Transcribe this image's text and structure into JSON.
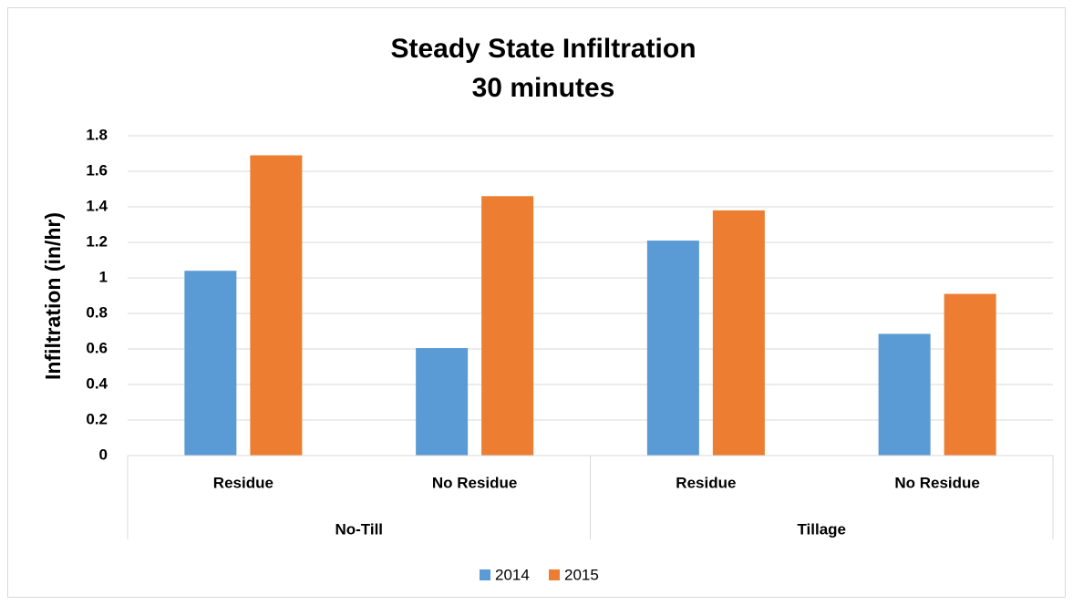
{
  "chart_data": {
    "type": "bar",
    "title": "Steady State Infiltration",
    "subtitle": "30 minutes",
    "y_label": "Infiltration (in/hr)",
    "groups": [
      {
        "name": "No-Till",
        "categories": [
          "Residue",
          "No Residue"
        ]
      },
      {
        "name": "Tillage",
        "categories": [
          "Residue",
          "No Residue"
        ]
      }
    ],
    "series": [
      {
        "name": "2014",
        "color": "#5b9bd5",
        "values": [
          1.04,
          0.605,
          1.21,
          0.685
        ]
      },
      {
        "name": "2015",
        "color": "#ed7d31",
        "values": [
          1.69,
          1.46,
          1.38,
          0.91
        ]
      }
    ],
    "ylim": [
      0,
      1.8
    ],
    "yticks": [
      0,
      0.2,
      0.4,
      0.6,
      0.8,
      1,
      1.2,
      1.4,
      1.6,
      1.8
    ],
    "grid": true,
    "legend": "bottom"
  }
}
